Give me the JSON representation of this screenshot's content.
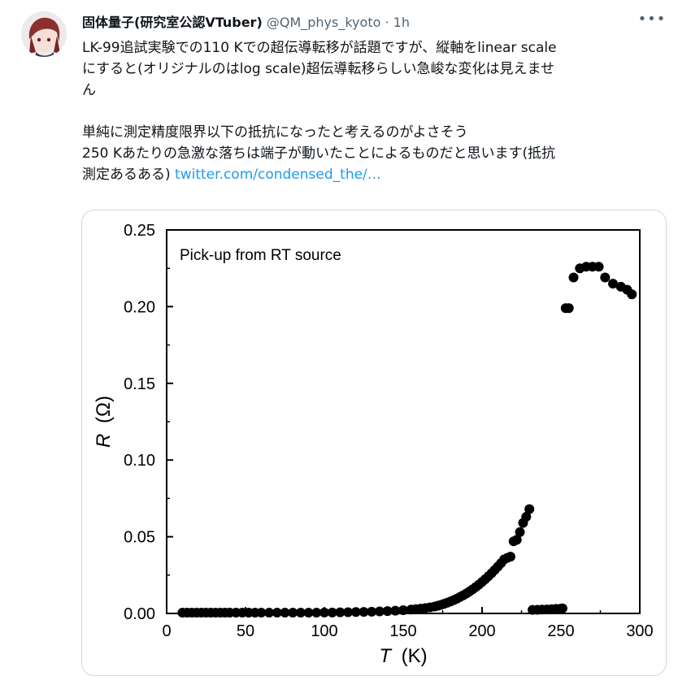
{
  "tweet": {
    "display_name": "固体量子(研究室公認VTuber)",
    "handle": "@QM_phys_kyoto",
    "separator": "·",
    "time": "1h",
    "more_label": "•••",
    "lines": [
      "LK-99追試実験での110 Kでの超伝導転移が話題ですが、縦軸をlinear scale",
      "にすると(オリジナルのはlog scale)超伝導転移らしい急峻な変化は見えませ",
      "ん"
    ],
    "lines2": [
      "単純に測定精度限界以下の抵抗になったと考えるのがよさそう",
      "250 Kあたりの急激な落ちは端子が動いたことによるものだと思います(抵抗"
    ],
    "last_line_prefix": "測定あるある)",
    "link_text": "twitter.com/condensed_the/…",
    "avatar_icon": "anime-avatar-icon"
  },
  "chart_data": {
    "type": "scatter",
    "annotation": "Pick-up from RT source",
    "xlabel_symbol": "T",
    "xlabel_unit": "(K)",
    "ylabel_symbol": "R",
    "ylabel_unit": "(Ω)",
    "xlim": [
      0,
      300
    ],
    "ylim": [
      0,
      0.25
    ],
    "x_ticks": [
      0,
      50,
      100,
      150,
      200,
      250,
      300
    ],
    "x_tick_labels": [
      "0",
      "50",
      "100",
      "150",
      "200",
      "250",
      "300"
    ],
    "y_ticks": [
      0,
      0.05,
      0.1,
      0.15,
      0.2,
      0.25
    ],
    "y_tick_labels": [
      "0.00",
      "0.05",
      "0.10",
      "0.15",
      "0.20",
      "0.25"
    ],
    "grid": false,
    "marker_color": "#000000",
    "series": [
      {
        "x": [
          10,
          13,
          16,
          19,
          22,
          25,
          28,
          31,
          34,
          37,
          40,
          44,
          48,
          52,
          56,
          60,
          65,
          70,
          75,
          80,
          85,
          90,
          95,
          100,
          105,
          110,
          115,
          120,
          125,
          130,
          135,
          140,
          145,
          150,
          155,
          158,
          161,
          164,
          167,
          170,
          172,
          174,
          176,
          178,
          180,
          182,
          184,
          186,
          188,
          190,
          192,
          194,
          196,
          198,
          200,
          202,
          204,
          206,
          208,
          210,
          212,
          214,
          216,
          218,
          220,
          222,
          224,
          226,
          228,
          230
        ],
        "y": [
          0.0005,
          0.0005,
          0.0005,
          0.0005,
          0.0005,
          0.0005,
          0.0005,
          0.0005,
          0.0005,
          0.0005,
          0.0005,
          0.0005,
          0.0005,
          0.0005,
          0.0005,
          0.0005,
          0.0005,
          0.0005,
          0.0005,
          0.0005,
          0.0005,
          0.0005,
          0.0005,
          0.0006,
          0.0006,
          0.0007,
          0.0008,
          0.0009,
          0.001,
          0.0011,
          0.0013,
          0.0015,
          0.0018,
          0.0021,
          0.0025,
          0.0028,
          0.0031,
          0.0035,
          0.004,
          0.0045,
          0.005,
          0.0056,
          0.0063,
          0.007,
          0.0078,
          0.0087,
          0.0096,
          0.0107,
          0.0118,
          0.013,
          0.0143,
          0.0157,
          0.0172,
          0.0188,
          0.0205,
          0.0223,
          0.0242,
          0.0262,
          0.0283,
          0.0305,
          0.0328,
          0.0352,
          0.0362,
          0.037,
          0.047,
          0.048,
          0.053,
          0.059,
          0.063,
          0.068
        ]
      },
      {
        "x": [
          232,
          235,
          238,
          241,
          244,
          247,
          250,
          251,
          253,
          255,
          258,
          262,
          266,
          270,
          274,
          278,
          283,
          288,
          292,
          295
        ],
        "y": [
          0.0023,
          0.0024,
          0.0025,
          0.0026,
          0.0028,
          0.003,
          0.0032,
          0.0033,
          0.199,
          0.199,
          0.219,
          0.225,
          0.226,
          0.226,
          0.226,
          0.219,
          0.215,
          0.213,
          0.211,
          0.208
        ]
      }
    ]
  }
}
